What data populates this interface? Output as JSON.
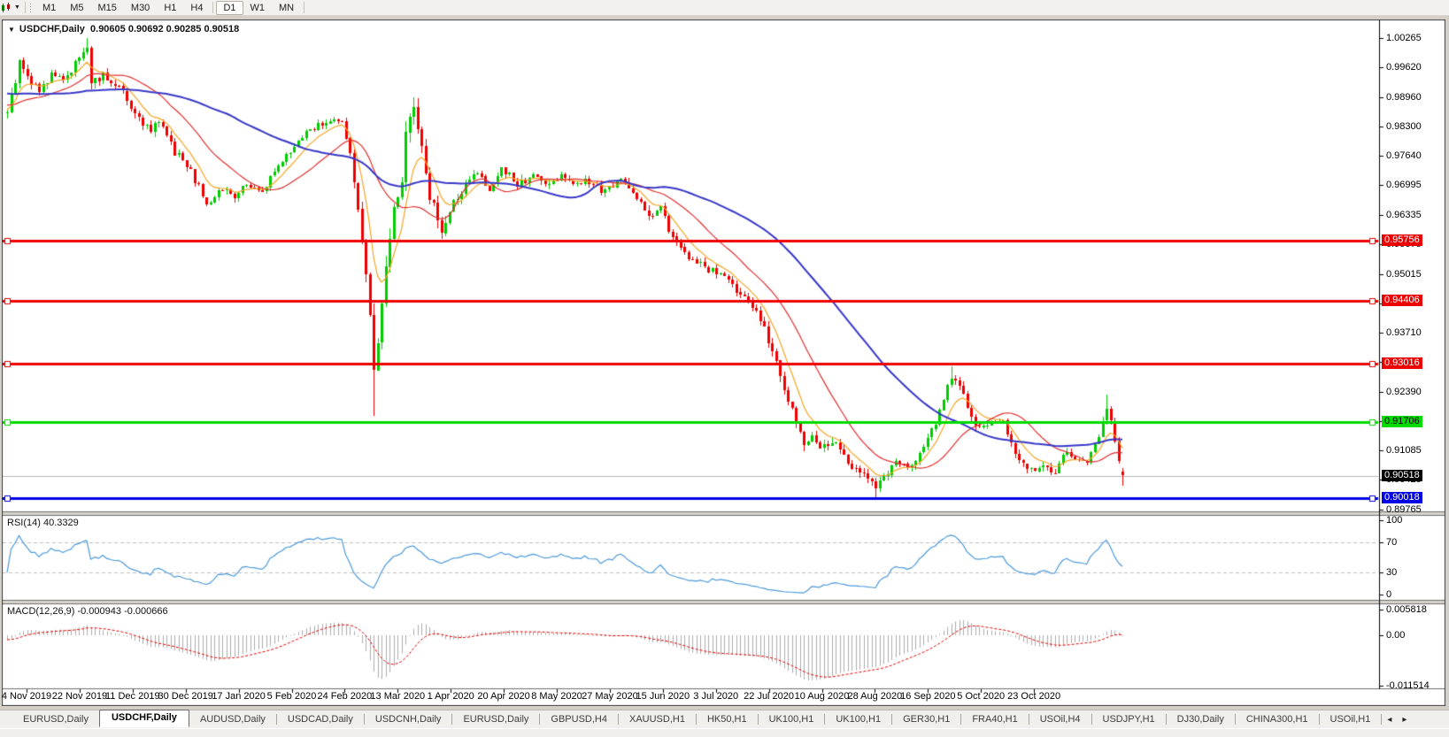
{
  "icons": {
    "title_caret": "▼",
    "toolbar_caret": "▼",
    "tab_prev": "◂",
    "tab_next": "▸"
  },
  "toolbar": {
    "timeframes": [
      "M1",
      "M5",
      "M15",
      "M30",
      "H1",
      "H4",
      "D1",
      "W1",
      "MN"
    ],
    "active": "D1"
  },
  "chart": {
    "title_symbol": "USDCHF,Daily",
    "title_ohlc": "0.90605 0.90692 0.90285 0.90518"
  },
  "price_axis": {
    "ticks": [
      "1.00265",
      "0.99620",
      "0.98960",
      "0.98300",
      "0.97640",
      "0.96995",
      "0.96335",
      "0.95675",
      "0.95015",
      "0.94355",
      "0.93710",
      "0.93050",
      "0.92390",
      "0.91730",
      "0.91085",
      "0.90425",
      "0.89765"
    ],
    "line_labels": [
      {
        "text": "0.95756",
        "bg": "#EE0000",
        "fg": "#FFFFFF"
      },
      {
        "text": "0.94406",
        "bg": "#EE0000",
        "fg": "#FFFFFF"
      },
      {
        "text": "0.93016",
        "bg": "#EE0000",
        "fg": "#FFFFFF"
      },
      {
        "text": "0.91706",
        "bg": "#00DC00",
        "fg": "#000000"
      },
      {
        "text": "0.90018",
        "bg": "#0000E8",
        "fg": "#FFFFFF"
      }
    ],
    "current": {
      "text": "0.90518",
      "bg": "#000000",
      "fg": "#FFFFFF",
      "price": 0.90518
    }
  },
  "date_axis": {
    "labels": [
      "4 Nov 2019",
      "22 Nov 2019",
      "11 Dec 2019",
      "30 Dec 2019",
      "17 Jan 2020",
      "5 Feb 2020",
      "24 Feb 2020",
      "13 Mar 2020",
      "1 Apr 2020",
      "20 Apr 2020",
      "8 May 2020",
      "27 May 2020",
      "15 Jun 2020",
      "3 Jul 2020",
      "22 Jul 2020",
      "10 Aug 2020",
      "28 Aug 2020",
      "16 Sep 2020",
      "5 Oct 2020",
      "23 Oct 2020"
    ]
  },
  "rsi": {
    "label": "RSI(14) 40.3329",
    "ticks": [
      {
        "v": 100,
        "text": "100"
      },
      {
        "v": 70,
        "text": "70"
      },
      {
        "v": 30,
        "text": "30"
      },
      {
        "v": 0,
        "text": "0"
      }
    ],
    "levels": [
      70,
      30
    ],
    "color": "#4D9ADB"
  },
  "macd": {
    "label": "MACD(12,26,9) -0.000943 -0.000666",
    "ticks": [
      {
        "v": 0.005818,
        "text": "0.005818"
      },
      {
        "v": 0,
        "text": "0.00"
      },
      {
        "v": -0.011514,
        "text": "-0.011514"
      }
    ],
    "hist_color": "#ADADAD",
    "signal_color": "#E40000"
  },
  "tabs": {
    "items": [
      "EURUSD,Daily",
      "USDCHF,Daily",
      "AUDUSD,Daily",
      "USDCAD,Daily",
      "USDCNH,Daily",
      "EURUSD,Daily",
      "GBPUSD,H4",
      "XAUUSD,H1",
      "HK50,H1",
      "UK100,H1",
      "UK100,H1",
      "GER30,H1",
      "FRA40,H1",
      "USOil,H4",
      "USDJPY,H1",
      "DJ30,Daily",
      "CHINA300,H1",
      "USOil,H1"
    ],
    "active_index": 1
  },
  "chart_data": [
    {
      "type": "candlestick",
      "symbol": "USDCHF",
      "timeframe": "Daily",
      "title": "USDCHF,Daily",
      "last_ohlc": {
        "open": 0.90605,
        "high": 0.90692,
        "low": 0.90285,
        "close": 0.90518
      },
      "up_color": "#00CC00",
      "down_color": "#EE0000",
      "num_candles": 281,
      "y_range_visible": [
        0.8955,
        1.0068
      ],
      "y_axis_ticks": [
        1.00265,
        0.9962,
        0.9896,
        0.983,
        0.9764,
        0.96995,
        0.96335,
        0.95675,
        0.95015,
        0.94355,
        0.9371,
        0.9305,
        0.9239,
        0.9173,
        0.91085,
        0.90425,
        0.89765
      ],
      "x_axis_dates": [
        "4 Nov 2019",
        "22 Nov 2019",
        "11 Dec 2019",
        "30 Dec 2019",
        "17 Jan 2020",
        "5 Feb 2020",
        "24 Feb 2020",
        "13 Mar 2020",
        "1 Apr 2020",
        "20 Apr 2020",
        "8 May 2020",
        "27 May 2020",
        "15 Jun 2020",
        "3 Jul 2020",
        "22 Jul 2020",
        "10 Aug 2020",
        "28 Aug 2020",
        "16 Sep 2020",
        "5 Oct 2020",
        "23 Oct 2020"
      ],
      "hlines": [
        {
          "price": 0.95756,
          "color": "#EE0000",
          "width": 3
        },
        {
          "price": 0.94406,
          "color": "#EE0000",
          "width": 3
        },
        {
          "price": 0.93016,
          "color": "#EE0000",
          "width": 3
        },
        {
          "price": 0.91706,
          "color": "#00DC00",
          "width": 3
        },
        {
          "price": 0.90018,
          "color": "#0000E8",
          "width": 3
        }
      ],
      "current_price_line": {
        "price": 0.90518,
        "color": "#B8B8B8"
      },
      "moving_averages": [
        {
          "name": "fast",
          "type": "ema",
          "period": 8,
          "color": "#F5A623",
          "width": 1.2
        },
        {
          "name": "mid",
          "type": "sma",
          "period": 21,
          "color": "#E03030",
          "width": 1.2
        },
        {
          "name": "slow",
          "type": "sma",
          "period": 55,
          "color": "#3838C8",
          "width": 2
        }
      ],
      "price_path_anchors": [
        [
          0,
          0.9865,
          0.0018
        ],
        [
          3,
          0.9968,
          0.002
        ],
        [
          6,
          0.9925,
          0.0018
        ],
        [
          8,
          0.9905,
          0.0016
        ],
        [
          11,
          0.9945,
          0.0015
        ],
        [
          14,
          0.9928,
          0.0015
        ],
        [
          18,
          0.9988,
          0.0016
        ],
        [
          20,
          1.0012,
          0.0016
        ],
        [
          21,
          0.9922,
          0.0022
        ],
        [
          24,
          0.9942,
          0.0015
        ],
        [
          28,
          0.9918,
          0.0014
        ],
        [
          32,
          0.9855,
          0.0016
        ],
        [
          36,
          0.9818,
          0.0015
        ],
        [
          38,
          0.9842,
          0.0014
        ],
        [
          42,
          0.9775,
          0.0016
        ],
        [
          46,
          0.9728,
          0.0015
        ],
        [
          50,
          0.966,
          0.0016
        ],
        [
          54,
          0.9692,
          0.0014
        ],
        [
          57,
          0.9675,
          0.0013
        ],
        [
          60,
          0.97,
          0.0013
        ],
        [
          64,
          0.9685,
          0.0012
        ],
        [
          67,
          0.973,
          0.0013
        ],
        [
          70,
          0.9762,
          0.0013
        ],
        [
          74,
          0.981,
          0.0014
        ],
        [
          77,
          0.9828,
          0.0013
        ],
        [
          81,
          0.9845,
          0.0013
        ],
        [
          84,
          0.9835,
          0.0014
        ],
        [
          86,
          0.978,
          0.0022
        ],
        [
          88,
          0.964,
          0.003
        ],
        [
          90,
          0.952,
          0.0035
        ],
        [
          91,
          0.94,
          0.004
        ],
        [
          92,
          0.93,
          0.0045
        ],
        [
          93,
          0.936,
          0.004
        ],
        [
          95,
          0.951,
          0.004
        ],
        [
          97,
          0.964,
          0.0038
        ],
        [
          99,
          0.972,
          0.0035
        ],
        [
          100,
          0.98,
          0.0033
        ],
        [
          102,
          0.9885,
          0.003
        ],
        [
          104,
          0.979,
          0.0028
        ],
        [
          106,
          0.968,
          0.0026
        ],
        [
          108,
          0.962,
          0.0024
        ],
        [
          109,
          0.959,
          0.0022
        ],
        [
          112,
          0.966,
          0.002
        ],
        [
          115,
          0.97,
          0.0018
        ],
        [
          118,
          0.9725,
          0.0016
        ],
        [
          121,
          0.969,
          0.0016
        ],
        [
          124,
          0.974,
          0.0016
        ],
        [
          128,
          0.97,
          0.0015
        ],
        [
          132,
          0.9722,
          0.0014
        ],
        [
          135,
          0.97,
          0.0014
        ],
        [
          139,
          0.972,
          0.0014
        ],
        [
          142,
          0.9695,
          0.0014
        ],
        [
          145,
          0.9715,
          0.0013
        ],
        [
          149,
          0.9688,
          0.0013
        ],
        [
          152,
          0.97,
          0.0013
        ],
        [
          155,
          0.9712,
          0.0013
        ],
        [
          158,
          0.9672,
          0.0014
        ],
        [
          161,
          0.9628,
          0.0014
        ],
        [
          164,
          0.9648,
          0.0013
        ],
        [
          166,
          0.96,
          0.0014
        ],
        [
          169,
          0.956,
          0.0014
        ],
        [
          172,
          0.953,
          0.0014
        ],
        [
          176,
          0.9512,
          0.0013
        ],
        [
          179,
          0.9498,
          0.0013
        ],
        [
          182,
          0.9475,
          0.0013
        ],
        [
          186,
          0.944,
          0.0014
        ],
        [
          189,
          0.94,
          0.0015
        ],
        [
          192,
          0.933,
          0.0017
        ],
        [
          195,
          0.925,
          0.0018
        ],
        [
          198,
          0.917,
          0.0018
        ],
        [
          200,
          0.912,
          0.0018
        ],
        [
          202,
          0.9145,
          0.0016
        ],
        [
          204,
          0.9108,
          0.0015
        ],
        [
          207,
          0.913,
          0.0015
        ],
        [
          210,
          0.9095,
          0.0015
        ],
        [
          212,
          0.907,
          0.0015
        ],
        [
          215,
          0.9055,
          0.0015
        ],
        [
          218,
          0.903,
          0.0014
        ],
        [
          220,
          0.9045,
          0.0014
        ],
        [
          223,
          0.9085,
          0.0014
        ],
        [
          226,
          0.907,
          0.0013
        ],
        [
          229,
          0.91,
          0.0013
        ],
        [
          232,
          0.915,
          0.0014
        ],
        [
          235,
          0.922,
          0.0015
        ],
        [
          237,
          0.9275,
          0.0015
        ],
        [
          239,
          0.925,
          0.0014
        ],
        [
          242,
          0.918,
          0.0014
        ],
        [
          244,
          0.916,
          0.0013
        ],
        [
          247,
          0.9175,
          0.0013
        ],
        [
          250,
          0.9168,
          0.0013
        ],
        [
          252,
          0.912,
          0.0014
        ],
        [
          255,
          0.908,
          0.0014
        ],
        [
          258,
          0.9062,
          0.0013
        ],
        [
          260,
          0.9075,
          0.0013
        ],
        [
          263,
          0.9055,
          0.0013
        ],
        [
          266,
          0.911,
          0.0013
        ],
        [
          268,
          0.909,
          0.0012
        ],
        [
          271,
          0.908,
          0.0012
        ],
        [
          274,
          0.914,
          0.0013
        ],
        [
          276,
          0.9195,
          0.0013
        ],
        [
          277,
          0.918,
          0.0013
        ],
        [
          279,
          0.9078,
          0.0014
        ],
        [
          280,
          0.90518,
          0.001
        ]
      ],
      "wick_overrides": {
        "20": {
          "high": 1.00265
        },
        "92": {
          "low": 0.9185
        },
        "102": {
          "high": 0.9896
        },
        "218": {
          "low": 0.9002
        },
        "237": {
          "high": 0.9296
        },
        "276": {
          "high": 0.9232
        },
        "280": {
          "low": 0.90285,
          "high": 0.90692
        }
      }
    },
    {
      "type": "line",
      "name": "RSI(14)",
      "period": 14,
      "current_value": 40.3329,
      "range": [
        0,
        100
      ],
      "levels": [
        70,
        30
      ],
      "color": "#4D9ADB",
      "derived_from": "closes of main candlestick series"
    },
    {
      "type": "histogram+line",
      "name": "MACD(12,26,9)",
      "fast": 12,
      "slow": 26,
      "signal": 9,
      "current_main": -0.000943,
      "current_signal": -0.000666,
      "y_ticks": [
        0.005818,
        0,
        -0.011514
      ],
      "derived_from": "closes of main candlestick series"
    }
  ]
}
